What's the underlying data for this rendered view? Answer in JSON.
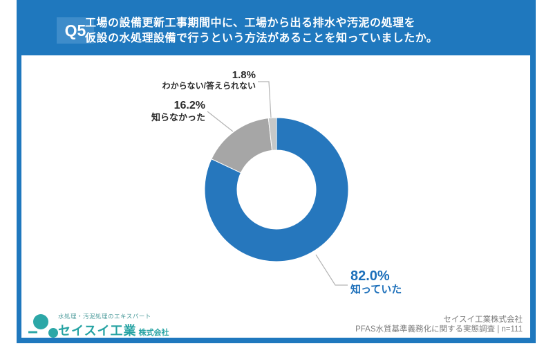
{
  "header": {
    "badge": "Q5",
    "title_line1": "工場の設備更新工事期間中に、工場から出る排水や汚泥の処理を",
    "title_line2": "仮設の水処理設備で行うという方法があることを知っていましたか。"
  },
  "chart_data": {
    "type": "pie",
    "subtype": "donut",
    "title": "工場の設備更新工事期間中に、工場から出る排水や汚泥の処理を仮設の水処理設備で行うという方法があることを知っていましたか。",
    "unit": "%",
    "start_angle_deg": -90,
    "direction": "clockwise",
    "inner_radius_ratio": 0.55,
    "sample": "n=111",
    "segments": [
      {
        "key": "knew",
        "label": "知っていた",
        "value": 82.0,
        "display": "82.0%",
        "color": "#2677bd"
      },
      {
        "key": "didnt-know",
        "label": "知らなかった",
        "value": 16.2,
        "display": "16.2%",
        "color": "#a6a6a6"
      },
      {
        "key": "unsure",
        "label": "わからない/答えられない",
        "value": 1.8,
        "display": "1.8%",
        "color": "#c6c8c8"
      }
    ]
  },
  "footer": {
    "logo_tagline": "水処理・汚泥処理のエキスパート",
    "logo_name": "セイスイ工業",
    "logo_suffix": "株式会社",
    "source_line1": "セイスイ工業株式会社",
    "source_line2": "PFAS水質基準義務化に関する実態調査 | n=111"
  },
  "colors": {
    "header_bg": "#1f78be",
    "badge_bg": "#3e8cca",
    "slice_knew": "#2677bd",
    "slice_didnt_know": "#a6a6a6",
    "slice_unsure": "#c6c8c8",
    "knew_label_text": "#1c6fba",
    "logo_teal": "#26a3a3",
    "leader_line": "#b3b3b3"
  }
}
